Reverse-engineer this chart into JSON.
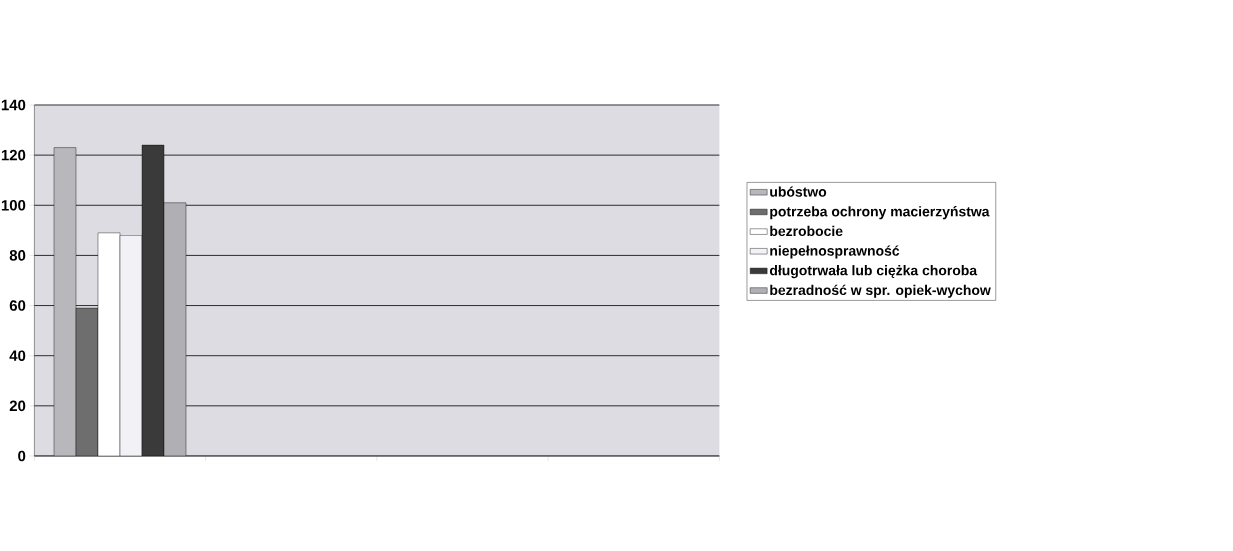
{
  "chart_data": {
    "type": "bar",
    "categories": [
      null,
      null,
      null,
      null
    ],
    "series": [
      {
        "name": "ubóstwo",
        "color": "#b8b8bc",
        "values": [
          123,
          null,
          null,
          null
        ]
      },
      {
        "name": "potrzeba ochrony macierzyństwa",
        "color": "#6e6e6e",
        "values": [
          59,
          null,
          null,
          null
        ]
      },
      {
        "name": "bezrobocie",
        "color": "#ffffff",
        "values": [
          89,
          null,
          null,
          null
        ]
      },
      {
        "name": "niepełnosprawność",
        "color": "#f2f2f6",
        "values": [
          88,
          null,
          null,
          null
        ]
      },
      {
        "name": "długotrwała lub ciężka choroba",
        "color": "#3a3a3a",
        "values": [
          124,
          null,
          null,
          null
        ]
      },
      {
        "name": "bezradność w spr. opiek-wychow",
        "color": "#b0b0b4",
        "values": [
          101,
          null,
          null,
          null
        ]
      }
    ],
    "ylim": [
      0,
      140
    ],
    "yticks": [
      0,
      20,
      40,
      60,
      80,
      100,
      120,
      140
    ],
    "grid": "y",
    "legend": "right"
  }
}
